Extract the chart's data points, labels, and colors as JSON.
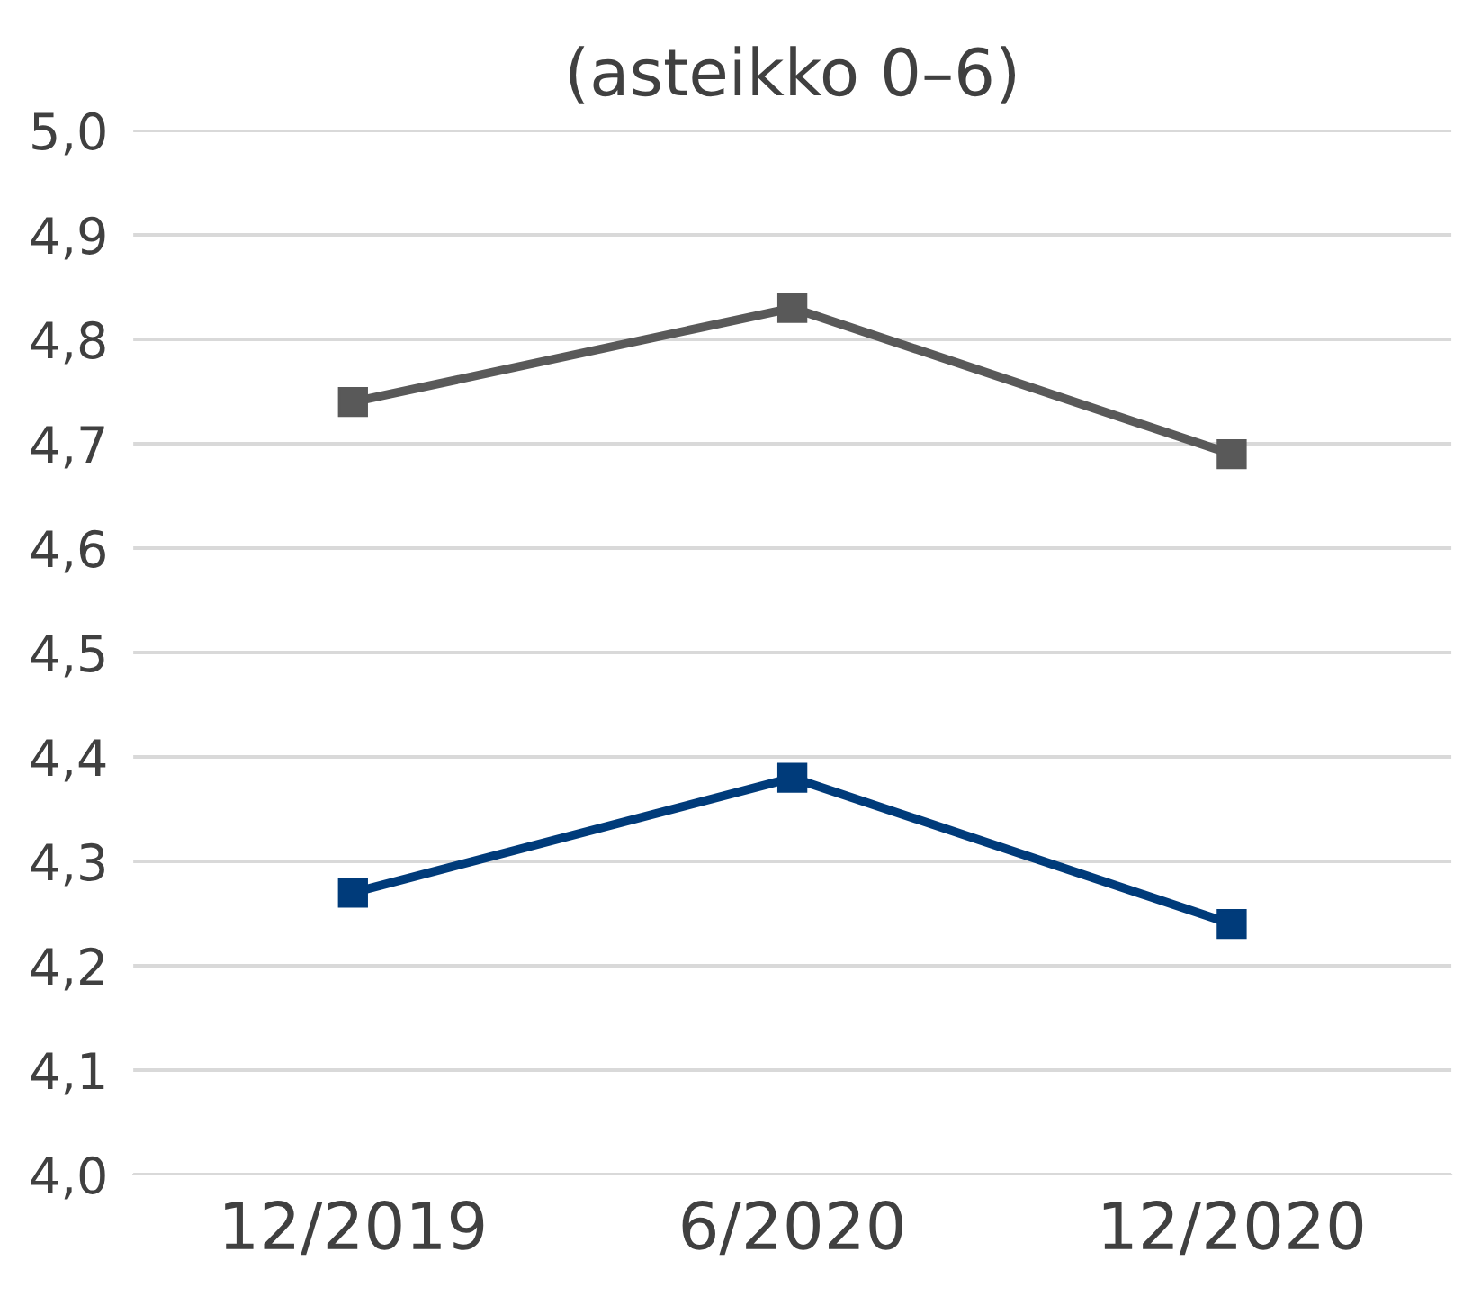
{
  "chart_data": {
    "type": "line",
    "title": "(asteikko 0–6)",
    "categories": [
      "12/2019",
      "6/2020",
      "12/2020"
    ],
    "series": [
      {
        "color": "#595959",
        "values": [
          4.74,
          4.83,
          4.69
        ]
      },
      {
        "color": "#003b7a",
        "values": [
          4.27,
          4.38,
          4.24
        ]
      }
    ],
    "ylim": [
      4.0,
      5.0
    ],
    "yticks": [
      {
        "value": 4.0,
        "label": "4,0"
      },
      {
        "value": 4.1,
        "label": "4,1"
      },
      {
        "value": 4.2,
        "label": "4,2"
      },
      {
        "value": 4.3,
        "label": "4,3"
      },
      {
        "value": 4.4,
        "label": "4,4"
      },
      {
        "value": 4.5,
        "label": "4,5"
      },
      {
        "value": 4.6,
        "label": "4,6"
      },
      {
        "value": 4.7,
        "label": "4,7"
      },
      {
        "value": 4.8,
        "label": "4,8"
      },
      {
        "value": 4.9,
        "label": "4,9"
      },
      {
        "value": 5.0,
        "label": "5,0"
      }
    ],
    "grid": "y",
    "marker": "square",
    "line_style": "solid"
  }
}
